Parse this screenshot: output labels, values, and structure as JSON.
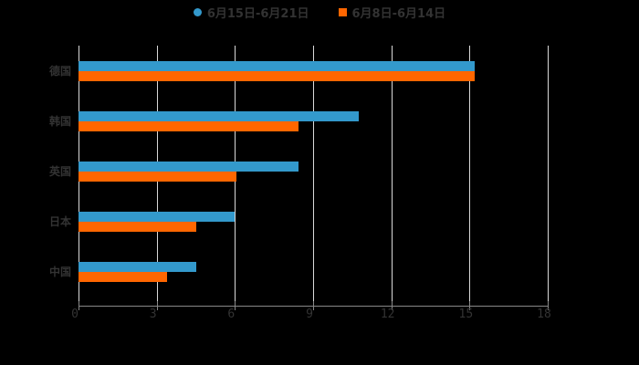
{
  "chart_data": {
    "type": "bar",
    "orientation": "horizontal",
    "title": "",
    "xlabel": "",
    "ylabel": "",
    "categories": [
      "德国",
      "韩国",
      "英国",
      "日本",
      "中国"
    ],
    "series": [
      {
        "name": "6月15日-6月21日",
        "color": "#3399cc",
        "values": [
          15.2,
          10.75,
          8.45,
          6.0,
          4.5
        ]
      },
      {
        "name": "6月8日-6月14日",
        "color": "#ff6600",
        "values": [
          15.2,
          8.45,
          6.05,
          4.5,
          3.4
        ]
      }
    ],
    "xlim": [
      0,
      18
    ],
    "xticks": [
      "0",
      "3",
      "6",
      "9",
      "12",
      "15",
      "18"
    ],
    "grid": true,
    "legend_position": "top"
  },
  "legend": {
    "items": [
      {
        "label": "6月15日-6月21日",
        "color": "#3399cc",
        "marker": "circle"
      },
      {
        "label": "6月8日-6月14日",
        "color": "#ff6600",
        "marker": "square"
      }
    ]
  }
}
